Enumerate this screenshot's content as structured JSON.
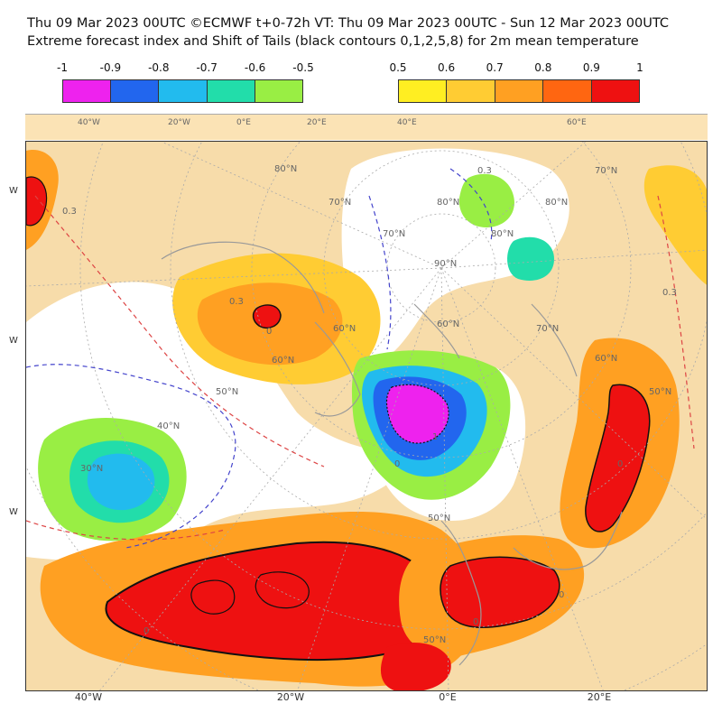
{
  "header": {
    "title": "Thu 09 Mar 2023 00UTC ©ECMWF t+0-72h  VT: Thu 09 Mar 2023 00UTC - Sun 12 Mar 2023 00UTC",
    "subtitle": "Extreme forecast index and Shift of Tails (black contours 0,1,2,5,8) for 2m mean temperature"
  },
  "legend_negative": {
    "ticks": [
      "-1",
      "-0.9",
      "-0.8",
      "-0.7",
      "-0.6",
      "-0.5"
    ],
    "colors": [
      "#ee22ee",
      "#2266ee",
      "#22bbee",
      "#22ddaa",
      "#99ee44"
    ]
  },
  "legend_positive": {
    "ticks": [
      "0.5",
      "0.6",
      "0.7",
      "0.8",
      "0.9",
      "1"
    ],
    "colors": [
      "#ffee22",
      "#ffcc33",
      "#ffa022",
      "#ff6611",
      "#ee1111"
    ]
  },
  "top_strip_labels": [
    "40°W",
    "20°W",
    "0°E",
    "20°E",
    "40°E",
    "60°E"
  ],
  "bottom_labels": [
    "40°W",
    "20°W",
    "0°E",
    "20°E"
  ],
  "side_labels": [
    "W",
    "W",
    "W"
  ],
  "map": {
    "lat_labels": [
      "80°N",
      "70°N",
      "60°N",
      "50°N",
      "40°N",
      "30°N",
      "90°N",
      "80°N",
      "70°N",
      "60°N",
      "50°N",
      "80°N",
      "70°N",
      "60°N",
      "50°N",
      "80°N",
      "70°N",
      "60°N",
      "50°N"
    ],
    "contour_labels": [
      "0.3",
      "0.3",
      "0.3",
      "0.3",
      "0",
      "0",
      "1",
      "0",
      "0",
      "0",
      "0"
    ],
    "colors": {
      "land": "#f7dcaa",
      "ocean": "#ffffff",
      "coast": "#999999",
      "grid": "#aaaaaa",
      "contour_dashed_red": "#dd4444",
      "contour_dashed_blue": "#4444cc"
    }
  }
}
